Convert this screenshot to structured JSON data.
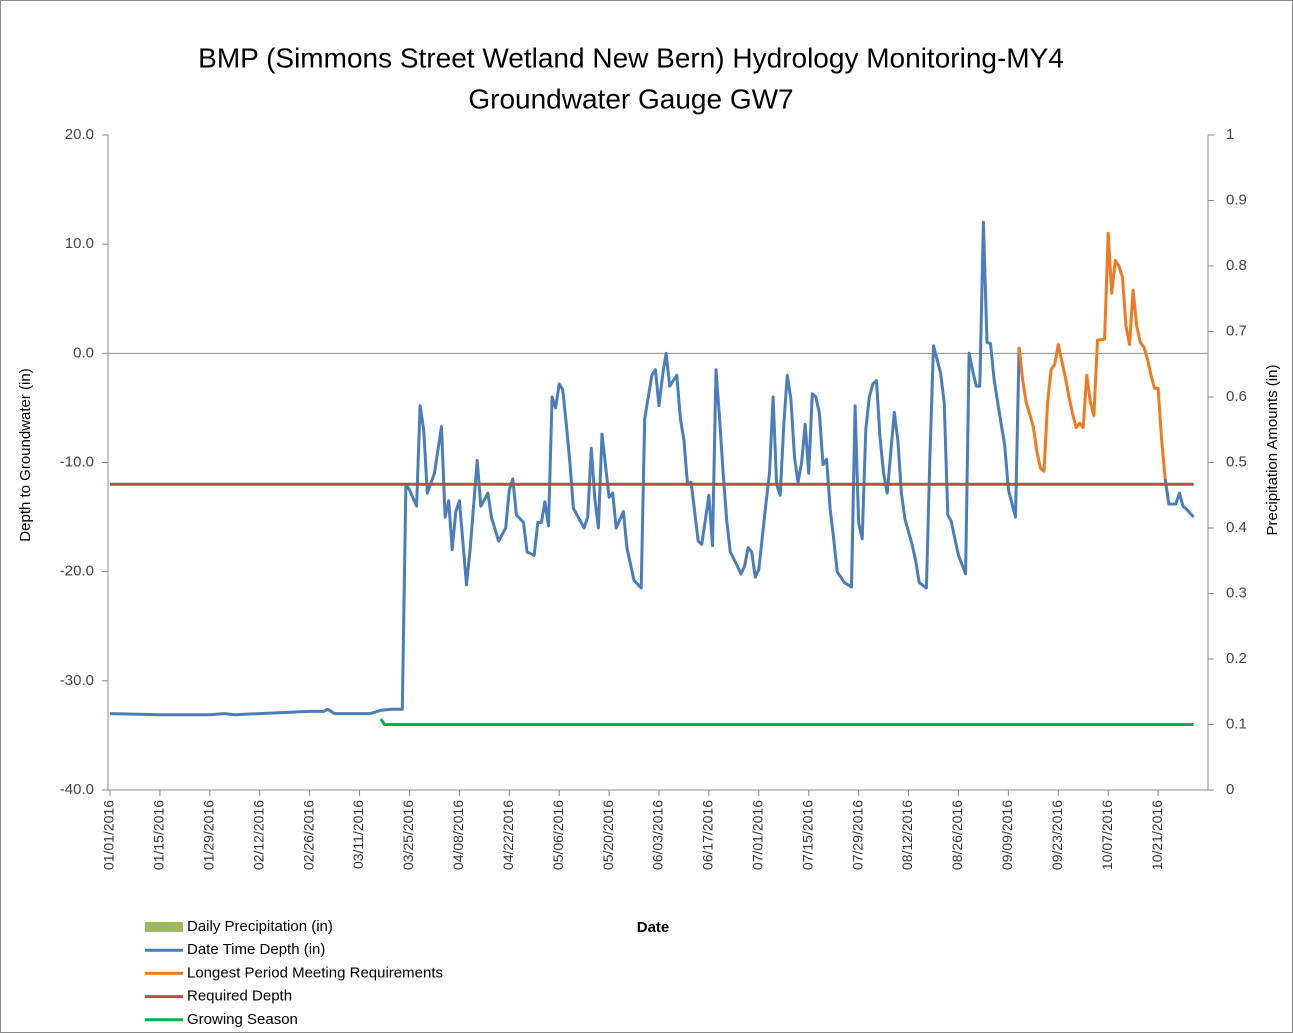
{
  "chart_data": {
    "type": "line",
    "title": [
      "BMP (Simmons Street Wetland New Bern) Hydrology Monitoring-MY4",
      "Groundwater Gauge GW7"
    ],
    "xlabel": "Date",
    "ylabel": "Depth to Groundwater (in)",
    "y2label": "Precipitation Amounts (in)",
    "xlim": [
      "01/01/2016",
      "11/04/2016"
    ],
    "xticks": [
      "01/01/2016",
      "01/15/2016",
      "01/29/2016",
      "02/12/2016",
      "02/26/2016",
      "03/11/2016",
      "03/25/2016",
      "04/08/2016",
      "04/22/2016",
      "05/06/2016",
      "05/20/2016",
      "06/03/2016",
      "06/17/2016",
      "07/01/2016",
      "07/15/2016",
      "07/29/2016",
      "08/12/2016",
      "08/26/2016",
      "09/09/2016",
      "09/23/2016",
      "10/07/2016",
      "10/21/2016"
    ],
    "ylim": [
      -40,
      20
    ],
    "yticks": [
      {
        "value": -40,
        "label": "-40.0"
      },
      {
        "value": -30,
        "label": "-30.0"
      },
      {
        "value": -20,
        "label": "-20.0"
      },
      {
        "value": -10,
        "label": "-10.0"
      },
      {
        "value": 0,
        "label": "0.0"
      },
      {
        "value": 10,
        "label": "10.0"
      },
      {
        "value": 20,
        "label": "20.0"
      }
    ],
    "y2lim": [
      0,
      1
    ],
    "y2ticks": [
      0,
      0.1,
      0.2,
      0.3,
      0.4,
      0.5,
      0.6,
      0.7,
      0.8,
      0.9,
      1
    ],
    "legend": "bottom-left",
    "series": [
      {
        "name": "Daily Precipitation (in)",
        "color": "#9bbb59",
        "kind": "bar",
        "axis": "y2",
        "x": [],
        "values": []
      },
      {
        "name": "Date Time Depth (in)",
        "color": "#4a7ebb",
        "x": [
          "01/01/2016",
          "01/15/2016",
          "01/29/2016",
          "02/02/2016",
          "02/05/2016",
          "02/26/2016",
          "03/01/2016",
          "03/02/2016",
          "03/04/2016",
          "03/14/2016",
          "03/17/2016",
          "03/20/2016",
          "03/23/2016",
          "03/24/2016",
          "03/25/2016",
          "03/27/2016",
          "03/28/2016",
          "03/29/2016",
          "03/30/2016",
          "04/01/2016",
          "04/03/2016",
          "04/04/2016",
          "04/05/2016",
          "04/06/2016",
          "04/07/2016",
          "04/08/2016",
          "04/10/2016",
          "04/11/2016",
          "04/13/2016",
          "04/14/2016",
          "04/16/2016",
          "04/17/2016",
          "04/19/2016",
          "04/21/2016",
          "04/22/2016",
          "04/23/2016",
          "04/24/2016",
          "04/26/2016",
          "04/27/2016",
          "04/29/2016",
          "04/30/2016",
          "05/01/2016",
          "05/02/2016",
          "05/03/2016",
          "05/04/2016",
          "05/05/2016",
          "05/06/2016",
          "05/07/2016",
          "05/08/2016",
          "05/09/2016",
          "05/10/2016",
          "05/11/2016",
          "05/13/2016",
          "05/14/2016",
          "05/15/2016",
          "05/16/2016",
          "05/17/2016",
          "05/18/2016",
          "05/20/2016",
          "05/21/2016",
          "05/22/2016",
          "05/24/2016",
          "05/25/2016",
          "05/27/2016",
          "05/29/2016",
          "05/30/2016",
          "06/01/2016",
          "06/02/2016",
          "06/03/2016",
          "06/04/2016",
          "06/05/2016",
          "06/06/2016",
          "06/07/2016",
          "06/08/2016",
          "06/09/2016",
          "06/10/2016",
          "06/11/2016",
          "06/12/2016",
          "06/14/2016",
          "06/15/2016",
          "06/17/2016",
          "06/18/2016",
          "06/19/2016",
          "06/20/2016",
          "06/21/2016",
          "06/22/2016",
          "06/23/2016",
          "06/25/2016",
          "06/26/2016",
          "06/27/2016",
          "06/28/2016",
          "06/29/2016",
          "06/30/2016",
          "07/01/2016",
          "07/03/2016",
          "07/04/2016",
          "07/05/2016",
          "07/06/2016",
          "07/07/2016",
          "07/08/2016",
          "07/09/2016",
          "07/10/2016",
          "07/11/2016",
          "07/12/2016",
          "07/13/2016",
          "07/14/2016",
          "07/15/2016",
          "07/16/2016",
          "07/17/2016",
          "07/18/2016",
          "07/19/2016",
          "07/20/2016",
          "07/21/2016",
          "07/22/2016",
          "07/23/2016",
          "07/25/2016",
          "07/27/2016",
          "07/28/2016",
          "07/29/2016",
          "07/30/2016",
          "07/31/2016",
          "08/01/2016",
          "08/02/2016",
          "08/03/2016",
          "08/04/2016",
          "08/05/2016",
          "08/06/2016",
          "08/08/2016",
          "08/09/2016",
          "08/10/2016",
          "08/11/2016",
          "08/13/2016",
          "08/14/2016",
          "08/15/2016",
          "08/17/2016",
          "08/18/2016",
          "08/19/2016",
          "08/21/2016",
          "08/22/2016",
          "08/23/2016",
          "08/24/2016",
          "08/25/2016",
          "08/26/2016",
          "08/28/2016",
          "08/29/2016",
          "08/30/2016",
          "08/31/2016",
          "09/01/2016",
          "09/02/2016",
          "09/03/2016",
          "09/04/2016",
          "09/05/2016",
          "09/06/2016",
          "09/08/2016",
          "09/09/2016",
          "09/11/2016",
          "09/12/2016",
          "10/01/2016",
          "10/23/2016",
          "10/24/2016",
          "10/26/2016",
          "10/27/2016",
          "10/28/2016",
          "10/29/2016",
          "10/31/2016"
        ],
        "values": [
          -33,
          -33.1,
          -33.1,
          -33,
          -33.1,
          -32.8,
          -32.8,
          -32.6,
          -33,
          -33,
          -32.7,
          -32.6,
          -32.6,
          -12,
          -12.5,
          -14,
          -4.8,
          -7,
          -12.8,
          -11,
          -6.7,
          -15,
          -13.5,
          -18,
          -14.5,
          -13.5,
          -21.2,
          -18,
          -9.8,
          -14,
          -12.8,
          -15,
          -17.2,
          -16,
          -12.5,
          -11.5,
          -14.8,
          -15.5,
          -18.2,
          -18.5,
          -15.5,
          -15.5,
          -13.6,
          -15.8,
          -4,
          -5,
          -2.8,
          -3.3,
          -6.5,
          -10,
          -14.2,
          -14.8,
          -16,
          -15,
          -8.7,
          -13.3,
          -16,
          -7.4,
          -13.2,
          -12.8,
          -16,
          -14.5,
          -17.8,
          -20.8,
          -21.5,
          -6,
          -2,
          -1.5,
          -4.8,
          -2,
          0,
          -3,
          -2.5,
          -2,
          -6,
          -8,
          -12,
          -11.8,
          -17.2,
          -17.5,
          -13,
          -17.6,
          -1.5,
          -6,
          -11,
          -15.3,
          -18.2,
          -19.5,
          -20.2,
          -19.5,
          -17.8,
          -18.2,
          -20.5,
          -19.8,
          -13.8,
          -11,
          -4,
          -12,
          -13,
          -6.5,
          -2,
          -4.2,
          -9.5,
          -11.8,
          -10,
          -6.5,
          -11,
          -3.7,
          -4,
          -5.5,
          -10.2,
          -9.7,
          -14.2,
          -17,
          -20,
          -21,
          -21.4,
          -4.8,
          -15.5,
          -17,
          -7,
          -4,
          -2.8,
          -2.5,
          -7.7,
          -11,
          -12.8,
          -5.4,
          -8,
          -12.8,
          -15.2,
          -17.5,
          -19,
          -21,
          -21.5,
          -9.5,
          0.7,
          -1.8,
          -4.5,
          -14.8,
          -15.4,
          -17,
          -18.5,
          -20.2,
          0,
          -1.6,
          -3,
          -3,
          12,
          1,
          0.9,
          -2.4,
          -4.5,
          -8.5,
          -12.5,
          -15,
          0.5,
          null,
          -11.5,
          -13.8,
          -13.8,
          -12.8,
          -14,
          -14.3,
          -15
        ]
      },
      {
        "name": "Longest Period Meeting Requirements",
        "color": "#f07a22",
        "x": [
          "09/12/2016",
          "09/13/2016",
          "09/14/2016",
          "09/16/2016",
          "09/17/2016",
          "09/18/2016",
          "09/19/2016",
          "09/20/2016",
          "09/21/2016",
          "09/22/2016",
          "09/23/2016",
          "09/24/2016",
          "09/25/2016",
          "09/26/2016",
          "09/27/2016",
          "09/28/2016",
          "09/29/2016",
          "09/30/2016",
          "10/01/2016",
          "10/02/2016",
          "10/03/2016",
          "10/04/2016",
          "10/06/2016",
          "10/07/2016",
          "10/08/2016",
          "10/09/2016",
          "10/10/2016",
          "10/11/2016",
          "10/12/2016",
          "10/13/2016",
          "10/14/2016",
          "10/15/2016",
          "10/16/2016",
          "10/17/2016",
          "10/18/2016",
          "10/19/2016",
          "10/20/2016",
          "10/21/2016",
          "10/22/2016",
          "10/23/2016"
        ],
        "values": [
          0.6,
          -2.4,
          -4.5,
          -6.7,
          -9,
          -10.5,
          -10.8,
          -4.5,
          -1.5,
          -1,
          0.8,
          -0.7,
          -2.2,
          -4,
          -5.5,
          -6.8,
          -6.4,
          -6.8,
          -2,
          -4.5,
          -5.7,
          1.2,
          1.3,
          11,
          5.5,
          8.5,
          8,
          7,
          2.5,
          0.8,
          5.8,
          2.5,
          1,
          0.6,
          -0.5,
          -2,
          -3.2,
          -3.2,
          -8,
          -11.5
        ]
      },
      {
        "name": "Required Depth",
        "color": "#be4b48",
        "x": [
          "01/01/2016",
          "10/31/2016"
        ],
        "values": [
          -12,
          -12
        ]
      },
      {
        "name": "Growing Season",
        "color": "#00b050",
        "x": [
          "03/17/2016",
          "03/18/2016",
          "10/31/2016"
        ],
        "values": [
          -33.5,
          -34,
          -34
        ]
      }
    ]
  }
}
